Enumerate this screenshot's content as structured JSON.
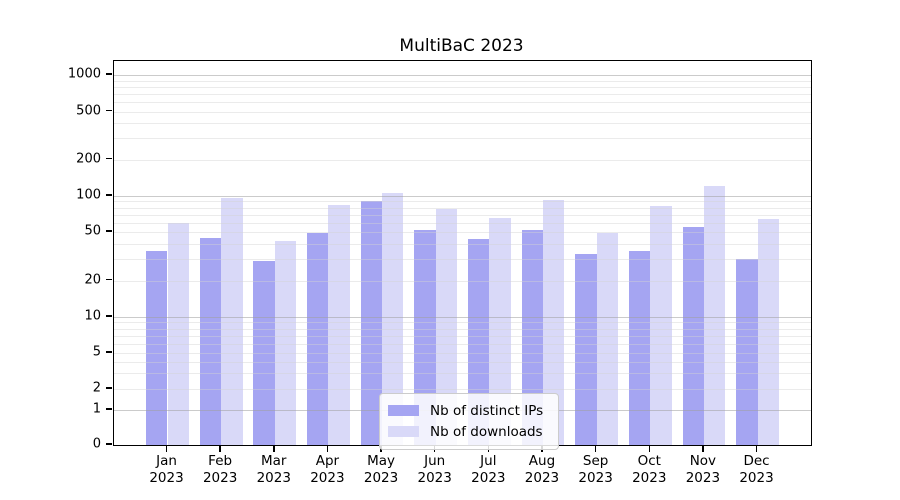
{
  "title": "MultiBaC 2023",
  "chart_data": {
    "type": "bar",
    "categories": [
      "Jan",
      "Feb",
      "Mar",
      "Apr",
      "May",
      "Jun",
      "Jul",
      "Aug",
      "Sep",
      "Oct",
      "Nov",
      "Dec"
    ],
    "year_label": "2023",
    "series": [
      {
        "name": "Nb of distinct IPs",
        "color": "#a5a5f2",
        "values": [
          35,
          45,
          29,
          49,
          90,
          52,
          44,
          52,
          33,
          35,
          55,
          30
        ]
      },
      {
        "name": "Nb of downloads",
        "color": "#d9d9f8",
        "values": [
          60,
          96,
          42,
          84,
          106,
          78,
          65,
          92,
          49,
          82,
          120,
          64
        ]
      }
    ],
    "title": "MultiBaC 2023",
    "xlabel": "",
    "ylabel": "",
    "yscale": "symlog",
    "yticks": [
      0,
      1,
      2,
      5,
      10,
      20,
      50,
      100,
      200,
      500,
      1000
    ],
    "ylim": [
      0,
      1200
    ],
    "grid": true,
    "legend_position": "lower center"
  }
}
